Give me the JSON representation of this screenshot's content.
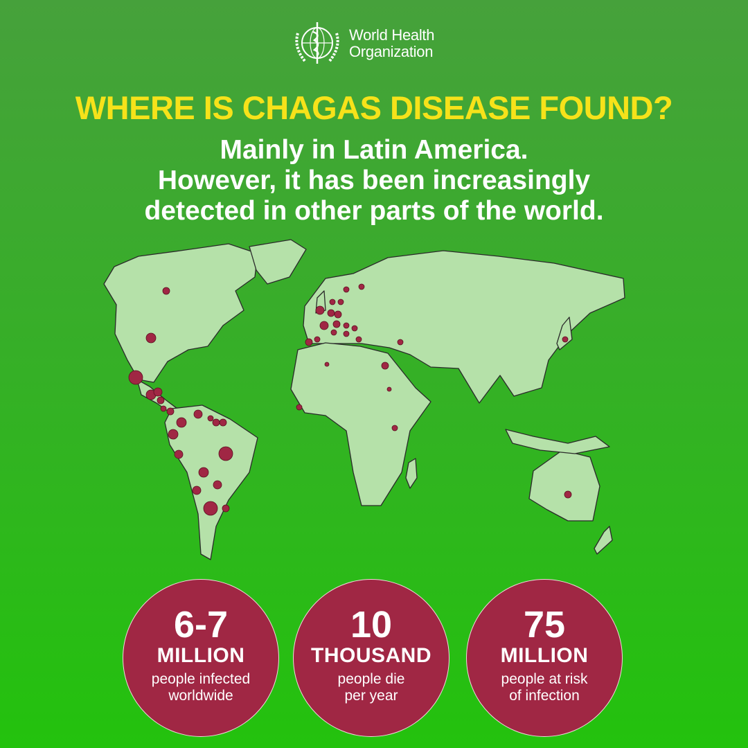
{
  "logo": {
    "line1": "World Health",
    "line2": "Organization"
  },
  "title": "WHERE IS CHAGAS DISEASE FOUND?",
  "subtitle": [
    "Mainly in Latin America.",
    "However, it has been increasingly",
    "detected in other parts of the world."
  ],
  "colors": {
    "land": "#b5e1a9",
    "outline": "#2a2a2a",
    "marker": "#a02744",
    "title": "#f6e21a"
  },
  "stats": [
    {
      "number": "6-7",
      "unit": "MILLION",
      "desc1": "people infected",
      "desc2": "worldwide"
    },
    {
      "number": "10",
      "unit": "THOUSAND",
      "desc1": "people die",
      "desc2": "per year"
    },
    {
      "number": "75",
      "unit": "MILLION",
      "desc1": "people at risk",
      "desc2": "of infection"
    }
  ]
}
